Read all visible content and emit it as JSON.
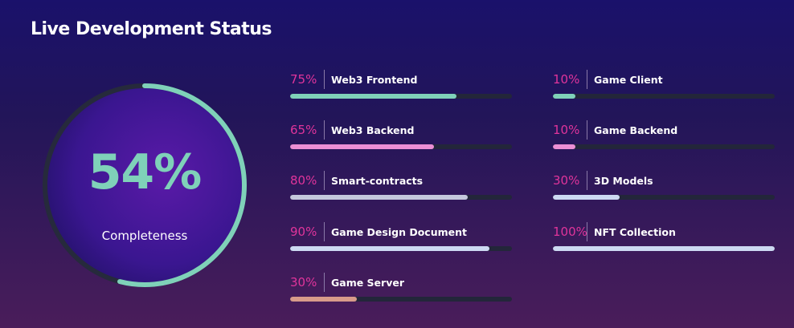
{
  "header": {
    "title": "Live Development Status"
  },
  "summary": {
    "percent_label": "54%",
    "value": 54,
    "caption": "Completeness",
    "color": "#7fd1b9"
  },
  "colors": {
    "percent_text": "#e0349b",
    "track": "#23263a"
  },
  "items": [
    {
      "pct": "75%",
      "value": 75,
      "label": "Web3 Frontend",
      "color": "#7fd1b9"
    },
    {
      "pct": "65%",
      "value": 65,
      "label": "Web3 Backend",
      "color": "#ec8fd4"
    },
    {
      "pct": "80%",
      "value": 80,
      "label": "Smart-contracts",
      "color": "#c5c8dc"
    },
    {
      "pct": "90%",
      "value": 90,
      "label": "Game Design Document",
      "color": "#cdd9f2"
    },
    {
      "pct": "30%",
      "value": 30,
      "label": "Game Server",
      "color": "#d89b8a"
    },
    {
      "pct": "10%",
      "value": 10,
      "label": "Game Client",
      "color": "#7fd1b9"
    },
    {
      "pct": "10%",
      "value": 10,
      "label": "Game Backend",
      "color": "#ec8fd4"
    },
    {
      "pct": "30%",
      "value": 30,
      "label": "3D Models",
      "color": "#cdd9f2"
    },
    {
      "pct": "100%",
      "value": 100,
      "label": "NFT Collection",
      "color": "#cdd9f2"
    }
  ]
}
